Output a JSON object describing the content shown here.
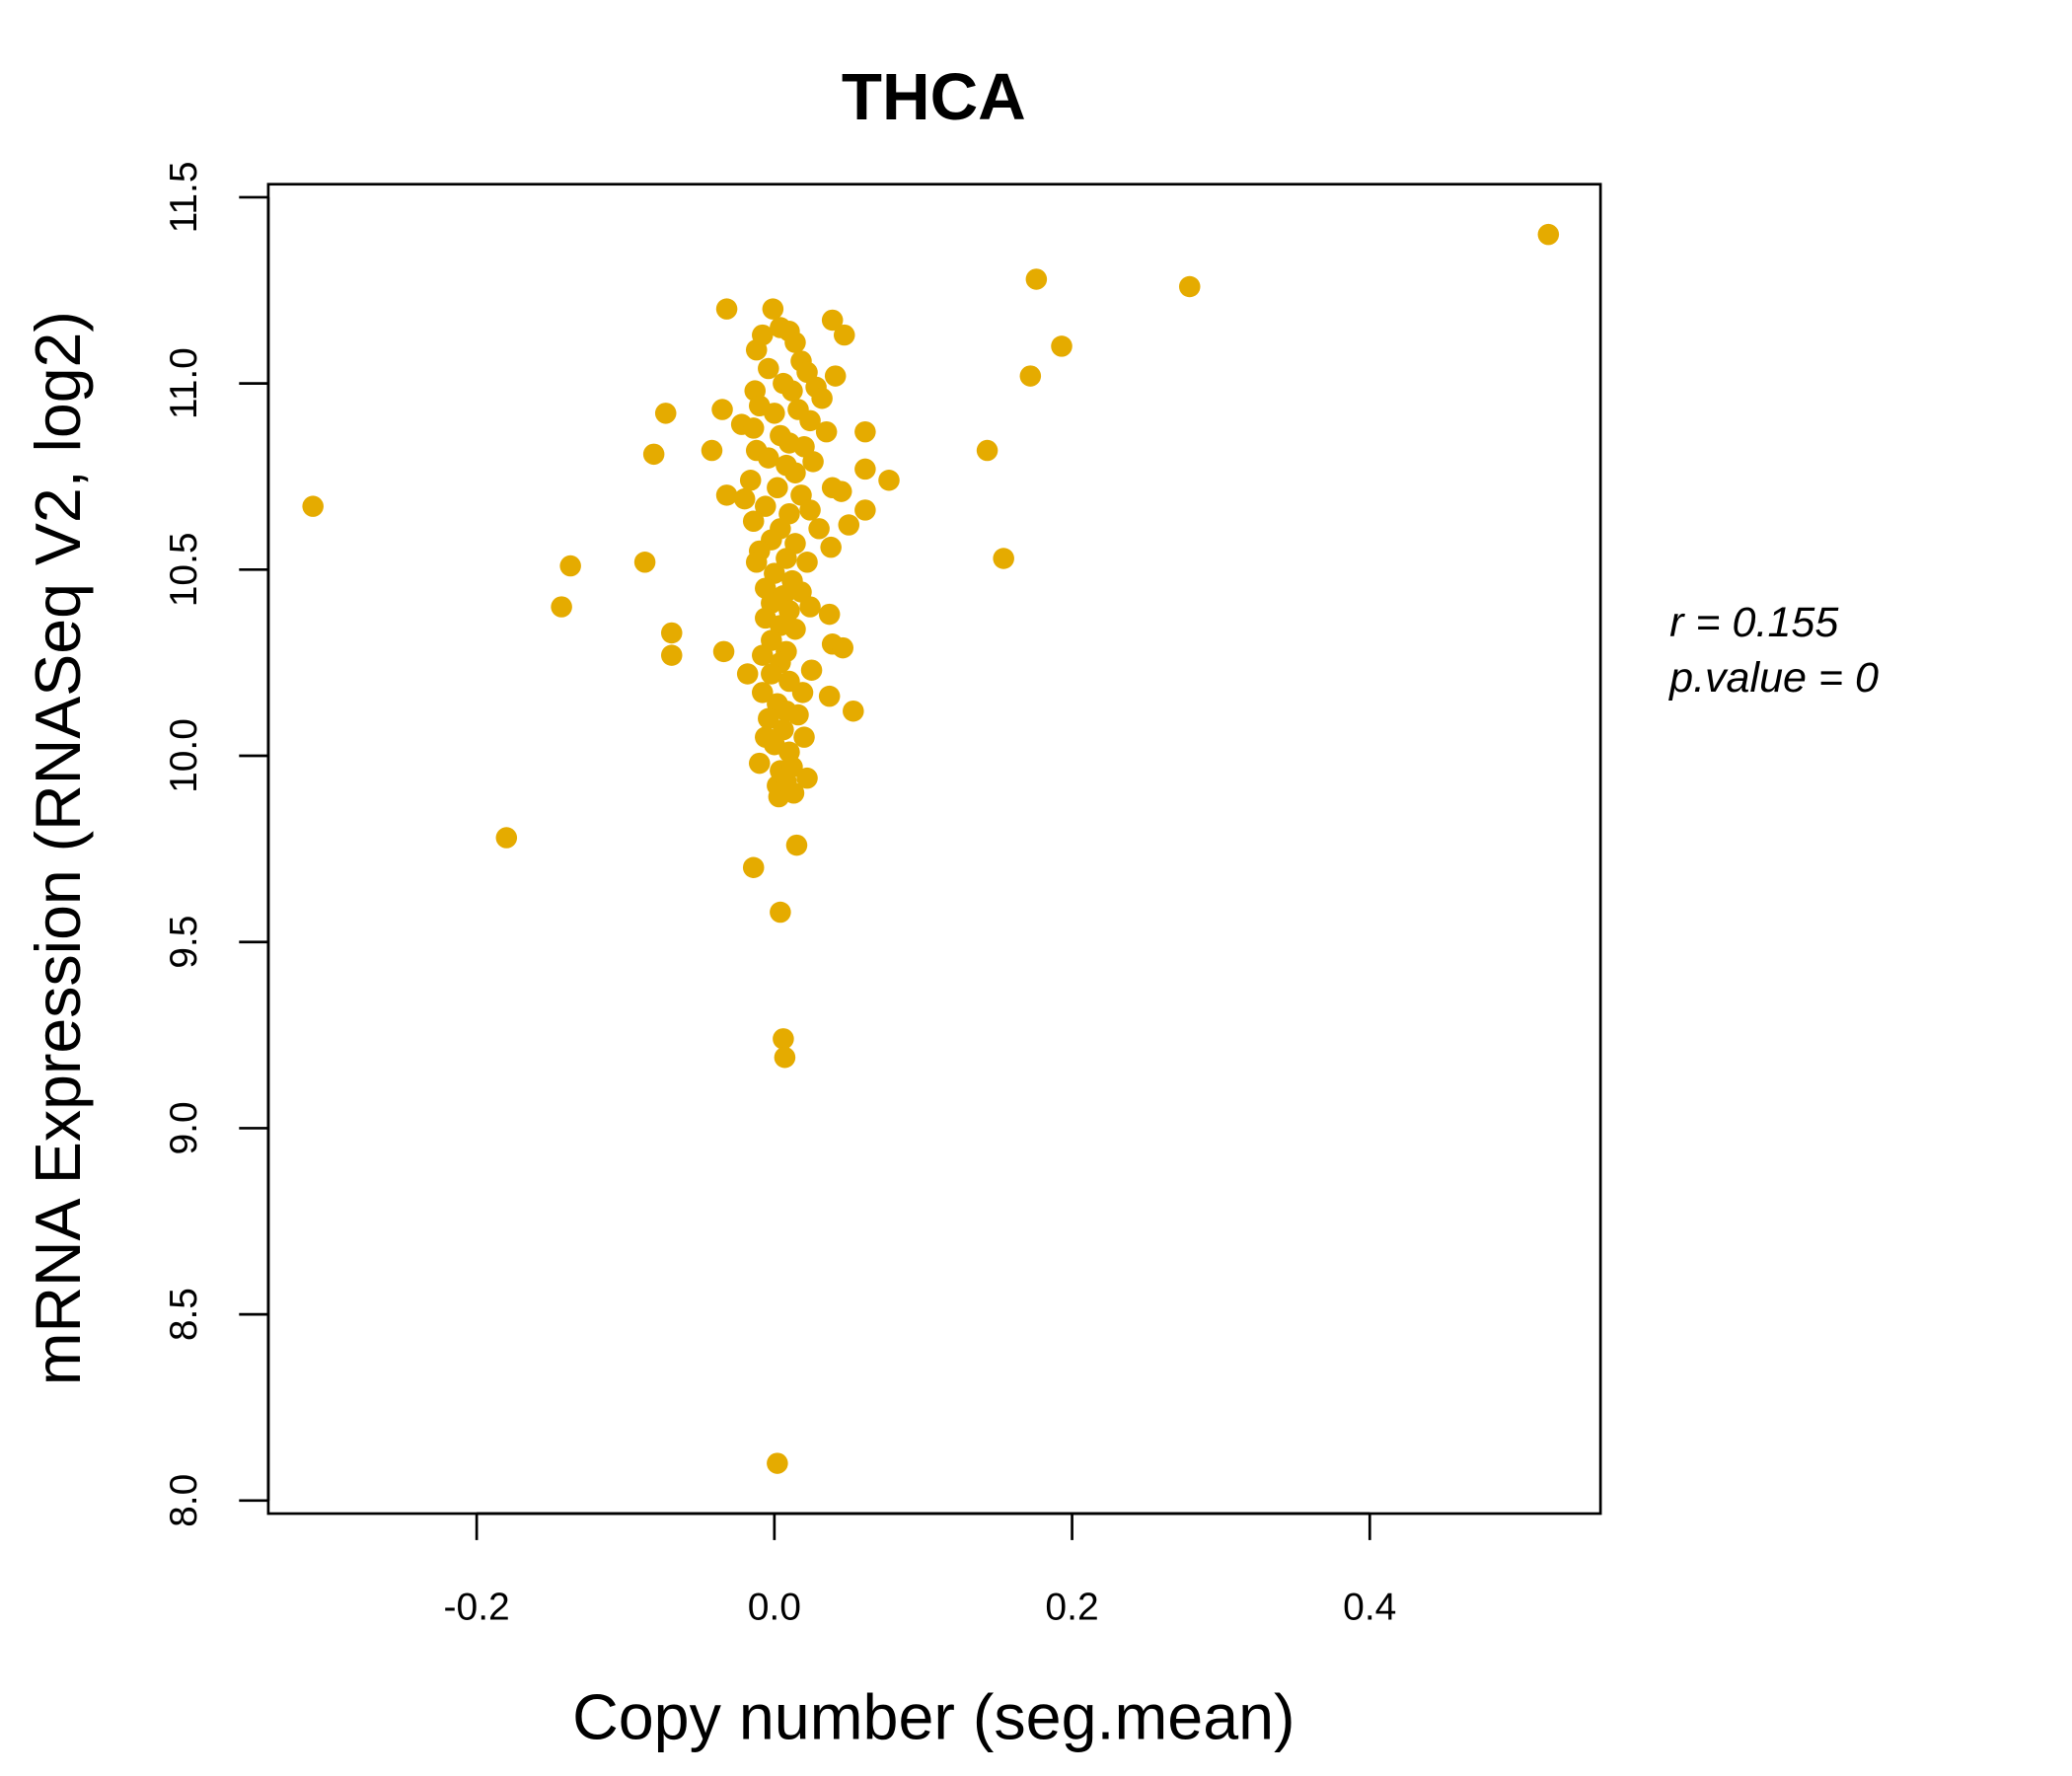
{
  "chart_data": {
    "type": "scatter",
    "title": "THCA",
    "xlabel": "Copy number (seg.mean)",
    "ylabel": "mRNA Expression (RNASeq V2, log2)",
    "xlim": [
      -0.34,
      0.555
    ],
    "ylim": [
      7.965,
      11.535
    ],
    "xticks": [
      -0.2,
      0.0,
      0.2,
      0.4
    ],
    "xtick_labels": [
      "-0.2",
      "0.0",
      "0.2",
      "0.4"
    ],
    "yticks": [
      8.0,
      8.5,
      9.0,
      9.5,
      10.0,
      10.5,
      11.0,
      11.5
    ],
    "ytick_labels": [
      "8.0",
      "8.5",
      "9.0",
      "9.5",
      "10.0",
      "10.5",
      "11.0",
      "11.5"
    ],
    "grid": false,
    "point_color": "#E5AB00",
    "title_color": "#E5AB00",
    "annotations": {
      "r_label": "r = 0.155",
      "p_label": "p.value = 0"
    },
    "points": [
      [
        -0.31,
        10.67
      ],
      [
        -0.18,
        9.78
      ],
      [
        -0.143,
        10.4
      ],
      [
        -0.137,
        10.51
      ],
      [
        -0.087,
        10.52
      ],
      [
        -0.081,
        10.81
      ],
      [
        -0.073,
        10.92
      ],
      [
        -0.069,
        10.33
      ],
      [
        -0.069,
        10.27
      ],
      [
        -0.042,
        10.82
      ],
      [
        -0.035,
        10.93
      ],
      [
        -0.034,
        10.28
      ],
      [
        -0.032,
        11.2
      ],
      [
        -0.032,
        10.7
      ],
      [
        -0.022,
        10.89
      ],
      [
        -0.018,
        10.22
      ],
      [
        -0.014,
        9.7
      ],
      [
        -0.013,
        10.98
      ],
      [
        -0.01,
        9.98
      ],
      [
        -0.006,
        10.05
      ],
      [
        -0.001,
        11.2
      ],
      [
        0.002,
        8.1
      ],
      [
        0.003,
        9.89
      ],
      [
        0.004,
        9.58
      ],
      [
        0.006,
        9.24
      ],
      [
        0.007,
        9.19
      ],
      [
        0.015,
        9.76
      ],
      [
        0.013,
        9.9
      ],
      [
        0.022,
        9.94
      ],
      [
        0.02,
        10.05
      ],
      [
        0.016,
        10.11
      ],
      [
        0.019,
        10.17
      ],
      [
        0.025,
        10.23
      ],
      [
        0.037,
        10.16
      ],
      [
        0.037,
        10.38
      ],
      [
        0.039,
        10.3
      ],
      [
        0.046,
        10.29
      ],
      [
        0.053,
        10.12
      ],
      [
        0.038,
        10.56
      ],
      [
        0.05,
        10.62
      ],
      [
        0.061,
        10.66
      ],
      [
        0.045,
        10.71
      ],
      [
        0.039,
        10.72
      ],
      [
        0.061,
        10.77
      ],
      [
        0.077,
        10.74
      ],
      [
        0.061,
        10.87
      ],
      [
        0.035,
        10.87
      ],
      [
        0.041,
        11.02
      ],
      [
        0.039,
        11.17
      ],
      [
        0.047,
        11.13
      ],
      [
        0.143,
        10.82
      ],
      [
        0.154,
        10.53
      ],
      [
        0.172,
        11.02
      ],
      [
        0.176,
        11.28
      ],
      [
        0.193,
        11.1
      ],
      [
        0.279,
        11.26
      ],
      [
        0.52,
        11.4
      ],
      [
        -0.012,
        11.09
      ],
      [
        -0.008,
        11.13
      ],
      [
        0.004,
        11.15
      ],
      [
        0.01,
        11.14
      ],
      [
        0.014,
        11.11
      ],
      [
        0.018,
        11.06
      ],
      [
        0.022,
        11.03
      ],
      [
        -0.004,
        11.04
      ],
      [
        0.006,
        11.0
      ],
      [
        0.012,
        10.98
      ],
      [
        0.028,
        10.99
      ],
      [
        0.032,
        10.96
      ],
      [
        -0.01,
        10.94
      ],
      [
        0.0,
        10.92
      ],
      [
        0.016,
        10.93
      ],
      [
        0.024,
        10.9
      ],
      [
        -0.014,
        10.88
      ],
      [
        0.004,
        10.86
      ],
      [
        0.01,
        10.84
      ],
      [
        0.02,
        10.83
      ],
      [
        -0.012,
        10.82
      ],
      [
        -0.004,
        10.8
      ],
      [
        0.008,
        10.78
      ],
      [
        0.014,
        10.76
      ],
      [
        0.026,
        10.79
      ],
      [
        -0.016,
        10.74
      ],
      [
        0.002,
        10.72
      ],
      [
        0.018,
        10.7
      ],
      [
        -0.02,
        10.69
      ],
      [
        -0.006,
        10.67
      ],
      [
        0.01,
        10.65
      ],
      [
        0.024,
        10.66
      ],
      [
        -0.014,
        10.63
      ],
      [
        0.004,
        10.61
      ],
      [
        0.03,
        10.61
      ],
      [
        -0.002,
        10.58
      ],
      [
        0.014,
        10.57
      ],
      [
        -0.01,
        10.55
      ],
      [
        0.008,
        10.53
      ],
      [
        0.022,
        10.52
      ],
      [
        -0.012,
        10.52
      ],
      [
        0.0,
        10.49
      ],
      [
        0.012,
        10.47
      ],
      [
        -0.006,
        10.45
      ],
      [
        0.006,
        10.43
      ],
      [
        0.018,
        10.44
      ],
      [
        -0.002,
        10.41
      ],
      [
        0.01,
        10.39
      ],
      [
        0.024,
        10.4
      ],
      [
        -0.006,
        10.37
      ],
      [
        0.004,
        10.35
      ],
      [
        0.014,
        10.34
      ],
      [
        -0.002,
        10.31
      ],
      [
        0.008,
        10.28
      ],
      [
        -0.008,
        10.27
      ],
      [
        0.004,
        10.25
      ],
      [
        -0.002,
        10.22
      ],
      [
        0.01,
        10.2
      ],
      [
        -0.008,
        10.17
      ],
      [
        0.002,
        10.14
      ],
      [
        0.008,
        10.12
      ],
      [
        -0.004,
        10.1
      ],
      [
        0.006,
        10.07
      ],
      [
        0.0,
        10.03
      ],
      [
        0.01,
        10.01
      ],
      [
        0.004,
        9.96
      ],
      [
        0.002,
        9.92
      ],
      [
        0.008,
        9.93
      ],
      [
        0.012,
        9.97
      ]
    ]
  }
}
